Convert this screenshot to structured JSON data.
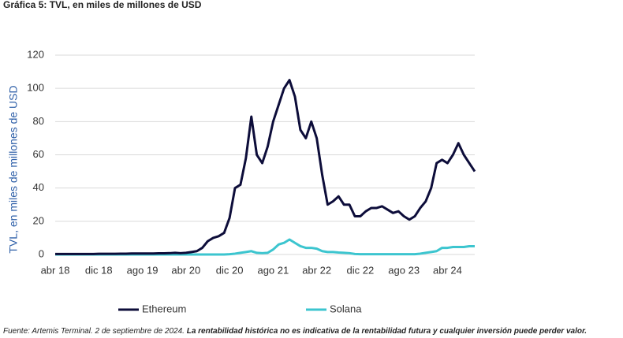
{
  "chart_data": {
    "type": "line",
    "title": "Gráfica 5: TVL, en miles de millones de USD",
    "y_label": "TVL, en miles de millones de USD",
    "source": "Fuente: Artemis Terminal. 2 de septiembre de 2024.",
    "disclaimer": "La rentabilidad histórica no es indicativa de la rentabilidad futura y cualquier inversión puede perder valor.",
    "categories": [
      "abr 18",
      null,
      null,
      null,
      null,
      null,
      null,
      null,
      "dic 18",
      null,
      null,
      null,
      null,
      null,
      null,
      null,
      "ago 19",
      null,
      null,
      null,
      null,
      null,
      null,
      null,
      "abr 20",
      null,
      null,
      null,
      null,
      null,
      null,
      null,
      "dic 20",
      null,
      null,
      null,
      null,
      null,
      null,
      null,
      "ago 21",
      null,
      null,
      null,
      null,
      null,
      null,
      null,
      "abr 22",
      null,
      null,
      null,
      null,
      null,
      null,
      null,
      "dic 22",
      null,
      null,
      null,
      null,
      null,
      null,
      null,
      "ago 23",
      null,
      null,
      null,
      null,
      null,
      null,
      null,
      "abr 24",
      null,
      null,
      null,
      null,
      null
    ],
    "series": [
      {
        "name": "Ethereum",
        "color": "#0d0d3a",
        "values": [
          0.3,
          0.3,
          0.3,
          0.3,
          0.3,
          0.3,
          0.3,
          0.3,
          0.4,
          0.4,
          0.4,
          0.4,
          0.5,
          0.5,
          0.6,
          0.6,
          0.6,
          0.6,
          0.6,
          0.7,
          0.7,
          0.8,
          1,
          0.8,
          1,
          1.5,
          2,
          4,
          8,
          10,
          11,
          13,
          22,
          40,
          42,
          58,
          83,
          60,
          55,
          65,
          80,
          90,
          100,
          105,
          95,
          75,
          70,
          80,
          70,
          48,
          30,
          32,
          35,
          30,
          30,
          23,
          23,
          26,
          28,
          28,
          29,
          27,
          25,
          26,
          23,
          21,
          23,
          28,
          32,
          40,
          55,
          57,
          55,
          60,
          67,
          60,
          55,
          50
        ]
      },
      {
        "name": "Solana",
        "color": "#3cc5cf",
        "values": [
          0,
          0,
          0,
          0,
          0,
          0,
          0,
          0,
          0,
          0,
          0,
          0,
          0,
          0,
          0,
          0,
          0,
          0,
          0,
          0,
          0,
          0,
          0,
          0,
          0,
          0,
          0,
          0,
          0,
          0,
          0,
          0,
          0.2,
          0.5,
          1,
          1.5,
          2,
          1,
          0.8,
          1,
          3,
          6,
          7,
          9,
          7,
          5,
          4,
          4,
          3.5,
          2,
          1.5,
          1.5,
          1.2,
          1,
          0.8,
          0.3,
          0.2,
          0.2,
          0.2,
          0.2,
          0.2,
          0.2,
          0.2,
          0.2,
          0.2,
          0.2,
          0.2,
          0.5,
          1,
          1.5,
          2,
          4,
          4,
          4.5,
          4.5,
          4.5,
          5,
          5
        ]
      }
    ],
    "ylim": [
      0,
      120
    ],
    "yticks": [
      0,
      20,
      40,
      60,
      80,
      100,
      120
    ],
    "grid": true
  }
}
